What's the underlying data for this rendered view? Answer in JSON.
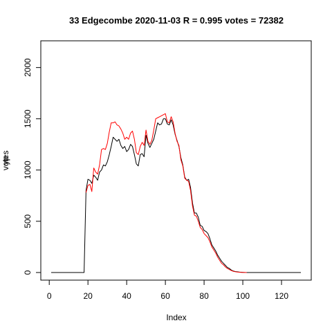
{
  "chart_data": {
    "type": "line",
    "title": "33 Edgecombe 2020-11-03 R = 0.995 votes = 72382",
    "xlabel": "Index",
    "ylabel": "votes",
    "ylabel_overlap": "yp",
    "xlim": [
      1,
      130
    ],
    "ylim": [
      0,
      2200
    ],
    "x_ticks": [
      0,
      20,
      40,
      60,
      80,
      100,
      120
    ],
    "y_ticks": [
      0,
      500,
      1000,
      1500,
      2000
    ],
    "grid": false,
    "x": [
      1,
      2,
      3,
      4,
      5,
      6,
      7,
      8,
      9,
      10,
      11,
      12,
      13,
      14,
      15,
      16,
      17,
      18,
      19,
      20,
      21,
      22,
      23,
      24,
      25,
      26,
      27,
      28,
      29,
      30,
      31,
      32,
      33,
      34,
      35,
      36,
      37,
      38,
      39,
      40,
      41,
      42,
      43,
      44,
      45,
      46,
      47,
      48,
      49,
      50,
      51,
      52,
      53,
      54,
      55,
      56,
      57,
      58,
      59,
      60,
      61,
      62,
      63,
      64,
      65,
      66,
      67,
      68,
      69,
      70,
      71,
      72,
      73,
      74,
      75,
      76,
      77,
      78,
      79,
      80,
      81,
      82,
      83,
      84,
      85,
      86,
      87,
      88,
      89,
      90,
      91,
      92,
      93,
      94,
      95,
      96,
      97,
      98,
      99,
      100,
      101,
      102,
      103,
      104,
      105,
      106,
      107,
      108,
      109,
      110,
      111,
      112,
      113,
      114,
      115,
      116,
      117,
      118,
      119,
      120,
      121,
      122,
      123,
      124,
      125,
      126,
      127,
      128,
      129,
      130
    ],
    "series": [
      {
        "color": "#000000",
        "values": [
          0,
          0,
          0,
          0,
          0,
          0,
          0,
          0,
          0,
          0,
          0,
          0,
          0,
          0,
          0,
          0,
          0,
          0,
          800,
          910,
          900,
          870,
          950,
          930,
          900,
          980,
          1000,
          1050,
          1040,
          1080,
          1150,
          1230,
          1320,
          1300,
          1280,
          1300,
          1240,
          1210,
          1230,
          1180,
          1200,
          1250,
          1230,
          1150,
          1060,
          1040,
          1150,
          1160,
          1130,
          1340,
          1260,
          1220,
          1260,
          1300,
          1380,
          1460,
          1440,
          1450,
          1500,
          1500,
          1450,
          1440,
          1490,
          1440,
          1350,
          1290,
          1230,
          1120,
          1050,
          930,
          900,
          910,
          830,
          680,
          580,
          580,
          540,
          460,
          450,
          410,
          400,
          380,
          330,
          270,
          240,
          210,
          170,
          140,
          110,
          90,
          70,
          50,
          40,
          25,
          15,
          10,
          8,
          5,
          3,
          2,
          1,
          0,
          0,
          0,
          0,
          0,
          0,
          0,
          0,
          0,
          0,
          0,
          0,
          0,
          0,
          0,
          0,
          0,
          0,
          0,
          0,
          0,
          0,
          0,
          0,
          0,
          0,
          0,
          0,
          0
        ]
      },
      {
        "color": "#ff0000",
        "values": [
          null,
          null,
          null,
          null,
          null,
          null,
          null,
          null,
          null,
          null,
          null,
          null,
          null,
          null,
          null,
          null,
          null,
          null,
          780,
          850,
          860,
          790,
          1020,
          980,
          960,
          1050,
          1200,
          1210,
          1200,
          1260,
          1370,
          1460,
          1460,
          1470,
          1440,
          1430,
          1400,
          1360,
          1300,
          1320,
          1300,
          1360,
          1380,
          1300,
          1170,
          1150,
          1230,
          1270,
          1240,
          1390,
          1280,
          1250,
          1290,
          1390,
          1500,
          1510,
          1520,
          1530,
          1540,
          1550,
          1470,
          1460,
          1520,
          1470,
          1360,
          1280,
          1240,
          1100,
          1040,
          920,
          900,
          890,
          800,
          650,
          560,
          550,
          500,
          440,
          420,
          380,
          360,
          340,
          300,
          250,
          220,
          190,
          150,
          120,
          90,
          75,
          55,
          40,
          30,
          20,
          12,
          8,
          5,
          3,
          2,
          1,
          0,
          0,
          null,
          null,
          null,
          null,
          null,
          null,
          null,
          null,
          null,
          null,
          null,
          null,
          null,
          null,
          null,
          null,
          null,
          null,
          null,
          null,
          null,
          null,
          null,
          null,
          null,
          null,
          null,
          null
        ]
      }
    ]
  }
}
